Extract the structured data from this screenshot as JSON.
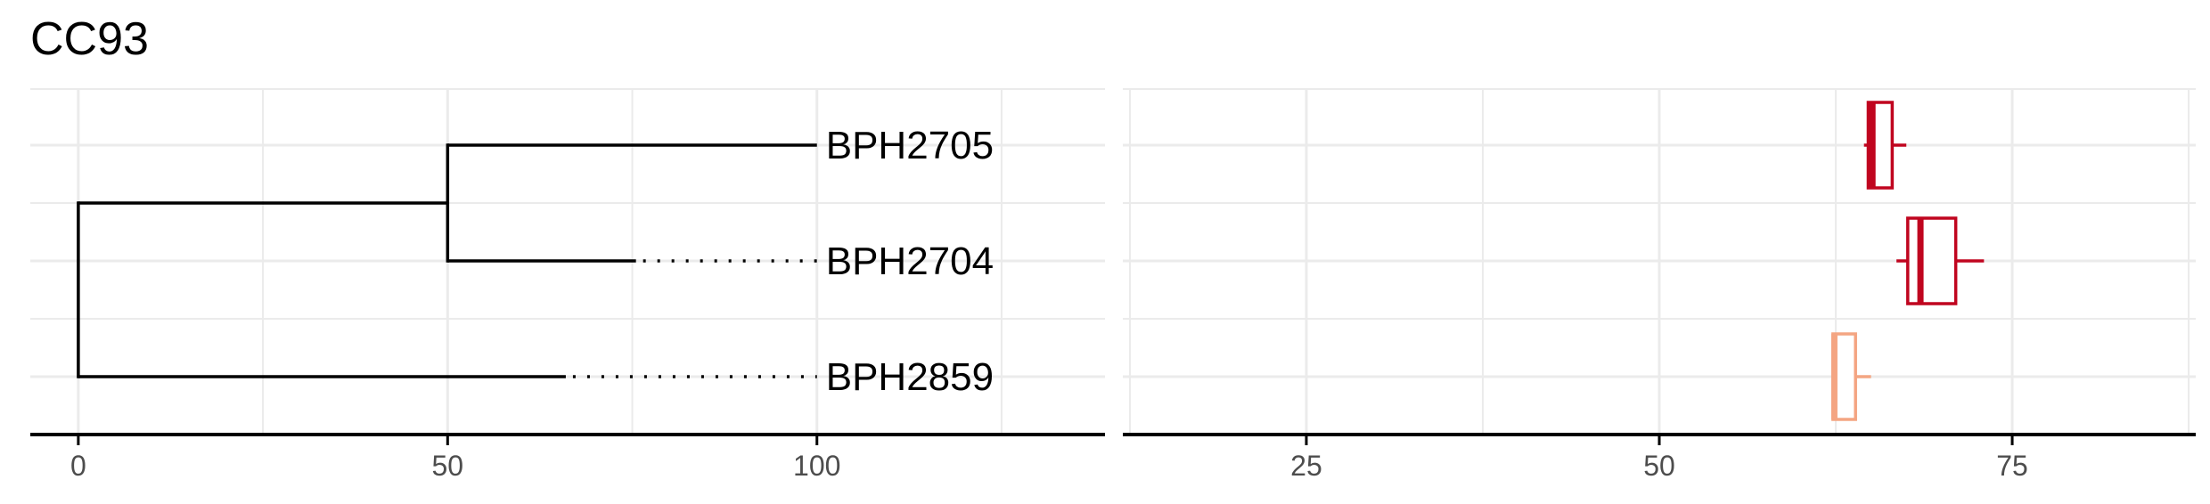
{
  "title": "CC93",
  "colors": {
    "grid": "#ebebeb",
    "axis": "#000000",
    "tick_label": "#4d4d4d",
    "tree": "#000000",
    "box_dark": "#c0051f",
    "box_light": "#f4a582"
  },
  "chart_data": [
    {
      "type": "tree",
      "title": "",
      "xlabel": "",
      "ylabel": "",
      "xlim": [
        -6.5,
        139
      ],
      "x_ticks": [
        "0",
        "50",
        "100"
      ],
      "x_tick_values": [
        0,
        50,
        100
      ],
      "grid": true,
      "root_x": 0,
      "internal_nodes": [
        {
          "x": 50,
          "children": [
            "BPH2705",
            "BPH2704"
          ]
        }
      ],
      "leaves": [
        {
          "label": "BPH2705",
          "branch_end_x": 100,
          "label_x": 100
        },
        {
          "label": "BPH2704",
          "branch_end_x": 75.5,
          "label_x": 100
        },
        {
          "label": "BPH2859",
          "branch_end_x": 66,
          "label_x": 100
        }
      ]
    },
    {
      "type": "boxplot",
      "title": "",
      "xlabel": "",
      "ylabel": "",
      "xlim": [
        12,
        88
      ],
      "x_ticks": [
        "25",
        "50",
        "75"
      ],
      "x_tick_values": [
        25,
        50,
        75
      ],
      "grid": true,
      "categories": [
        "BPH2705",
        "BPH2704",
        "BPH2859"
      ],
      "boxes": [
        {
          "category": "BPH2705",
          "whisker_low": 64.5,
          "q1": 64.8,
          "median": 65.1,
          "q3": 66.5,
          "whisker_high": 67.5,
          "color": "#c0051f"
        },
        {
          "category": "BPH2704",
          "whisker_low": 66.8,
          "q1": 67.6,
          "median": 68.5,
          "q3": 71.0,
          "whisker_high": 73.0,
          "color": "#c0051f"
        },
        {
          "category": "BPH2859",
          "whisker_low": 62.2,
          "q1": 62.3,
          "median": 62.4,
          "q3": 63.9,
          "whisker_high": 65.0,
          "color": "#f4a582"
        }
      ]
    }
  ]
}
